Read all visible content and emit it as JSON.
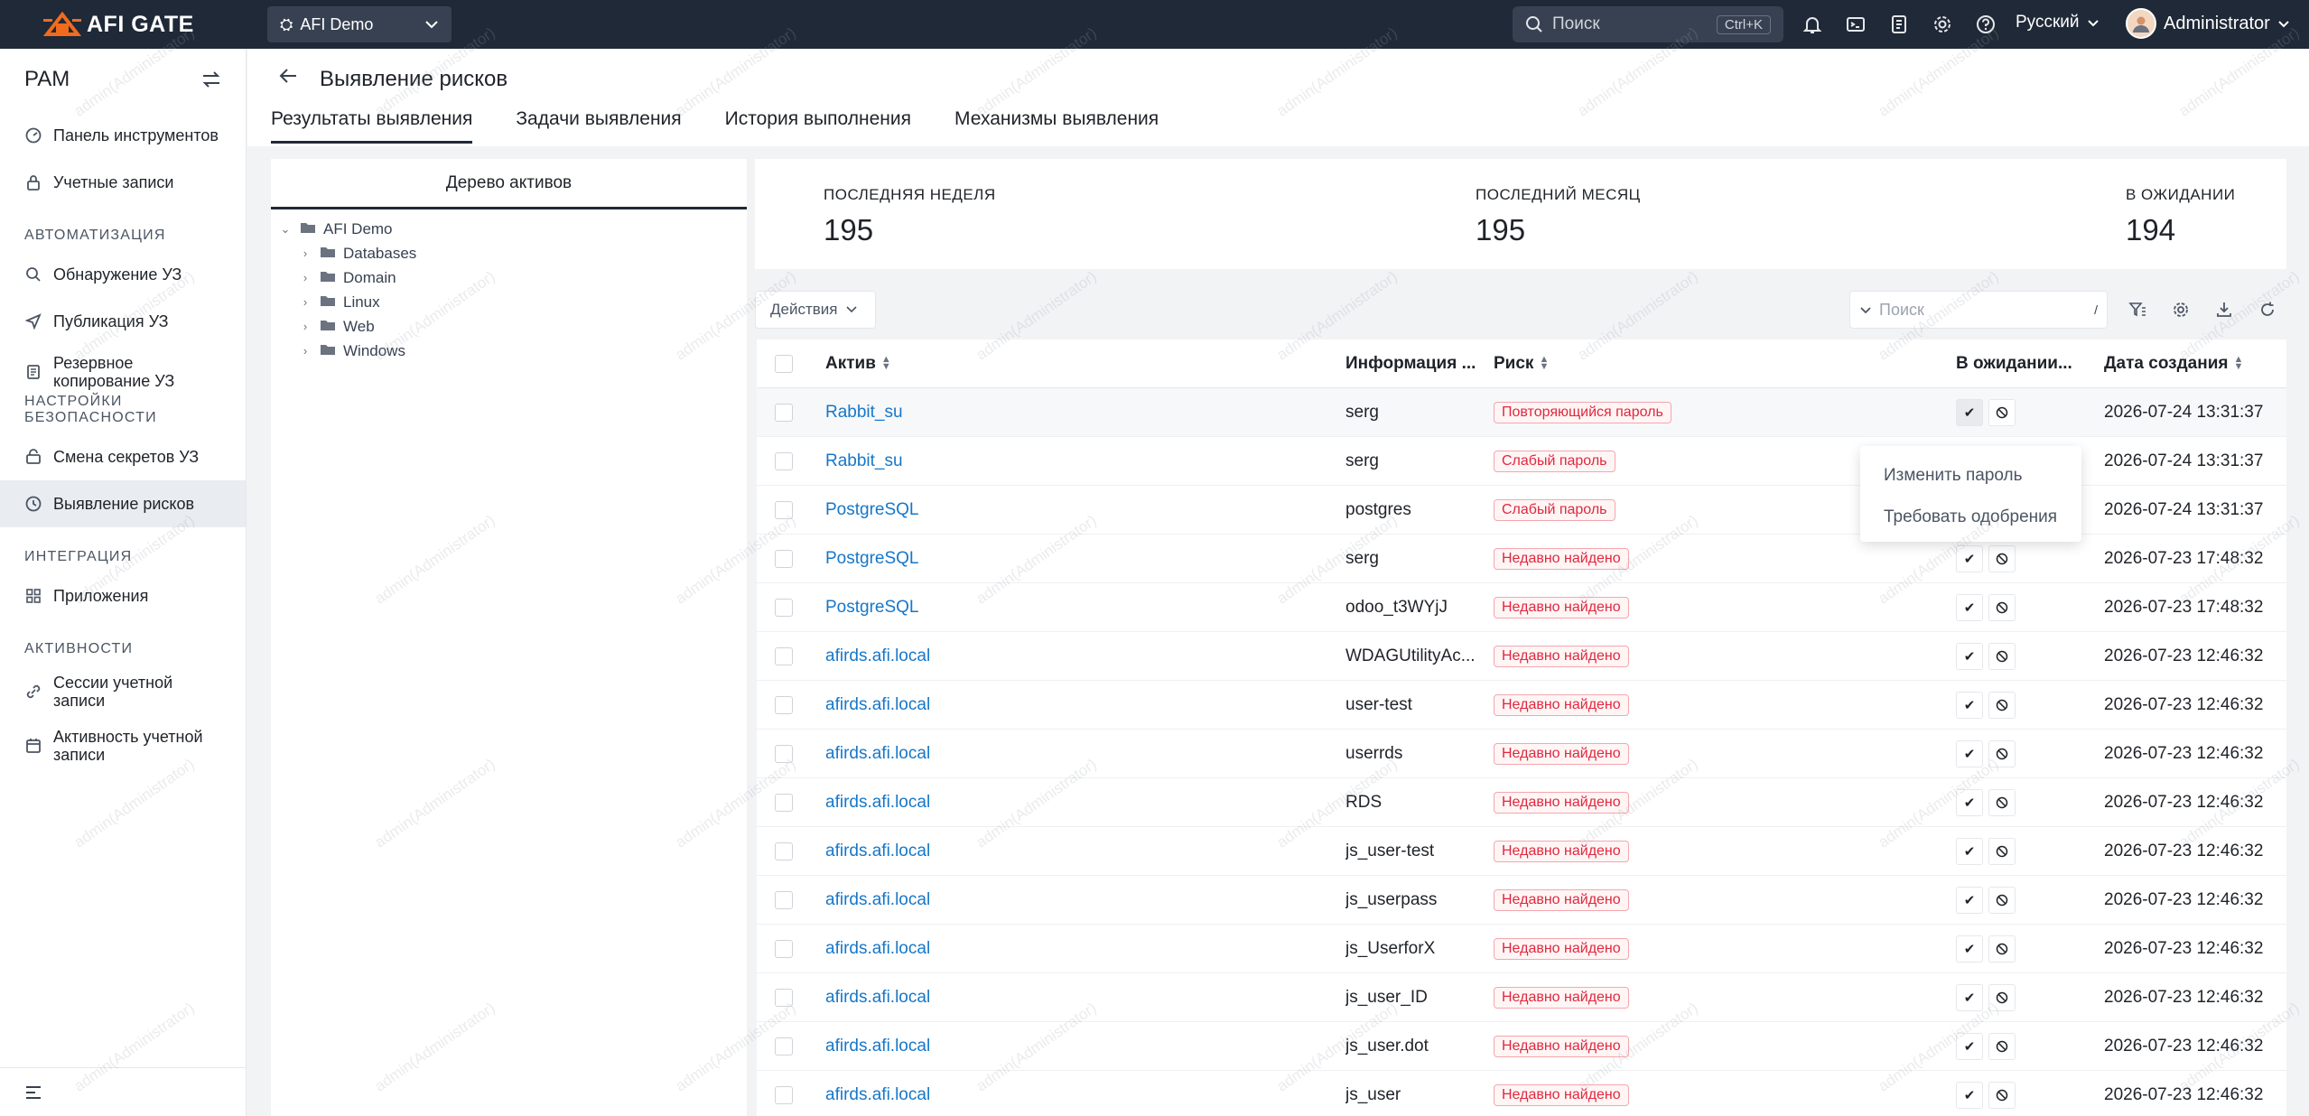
{
  "topbar": {
    "brand": "AFI GATE",
    "org": "AFI Demo",
    "search_placeholder": "Поиск",
    "search_shortcut": "Ctrl+K",
    "language": "Русский",
    "user": "Administrator"
  },
  "sidebar": {
    "title": "PAM",
    "items_top": [
      {
        "label": "Панель инструментов",
        "icon": "dashboard-icon"
      },
      {
        "label": "Учетные записи",
        "icon": "lock-icon"
      }
    ],
    "section_automation": "АВТОМАТИЗАЦИЯ",
    "items_automation": [
      {
        "label": "Обнаружение УЗ",
        "icon": "search-icon"
      },
      {
        "label": "Публикация УЗ",
        "icon": "send-icon"
      },
      {
        "label": "Резервное копирование УЗ",
        "icon": "backup-icon"
      }
    ],
    "section_security": "НАСТРОЙКИ БЕЗОПАСНОСТИ",
    "items_security": [
      {
        "label": "Смена секретов УЗ",
        "icon": "key-rotate-icon"
      },
      {
        "label": "Выявление рисков",
        "icon": "risk-icon"
      }
    ],
    "section_integration": "ИНТЕГРАЦИЯ",
    "items_integration": [
      {
        "label": "Приложения",
        "icon": "apps-icon"
      }
    ],
    "section_activity": "АКТИВНОСТИ",
    "items_activity": [
      {
        "label": "Сессии учетной записи",
        "icon": "link-icon"
      },
      {
        "label": "Активность учетной записи",
        "icon": "calendar-icon"
      }
    ]
  },
  "page": {
    "title": "Выявление рисков",
    "tabs": [
      "Результаты выявления",
      "Задачи выявления",
      "История выполнения",
      "Механизмы выявления"
    ]
  },
  "tree": {
    "title": "Дерево активов",
    "root": "AFI Demo",
    "children": [
      "Databases",
      "Domain",
      "Linux",
      "Web",
      "Windows"
    ]
  },
  "stats": [
    {
      "label": "ПОСЛЕДНЯЯ НЕДЕЛЯ",
      "value": "195"
    },
    {
      "label": "ПОСЛЕДНИЙ МЕСЯЦ",
      "value": "195"
    },
    {
      "label": "В ОЖИДАНИИ",
      "value": "194"
    }
  ],
  "toolbar": {
    "actions_label": "Действия",
    "search_placeholder": "Поиск",
    "search_shortcut": "/"
  },
  "table": {
    "columns": [
      "Актив",
      "Информация ...",
      "Риск",
      "В ожидании...",
      "Дата создания"
    ],
    "rows": [
      {
        "asset": "Rabbit_su",
        "info": "serg",
        "risk": "Повторяющийся пароль",
        "date": "2026-07-24 13:31:37"
      },
      {
        "asset": "Rabbit_su",
        "info": "serg",
        "risk": "Слабый пароль",
        "date": "2026-07-24 13:31:37"
      },
      {
        "asset": "PostgreSQL",
        "info": "postgres",
        "risk": "Слабый пароль",
        "date": "2026-07-24 13:31:37"
      },
      {
        "asset": "PostgreSQL",
        "info": "serg",
        "risk": "Недавно найдено",
        "date": "2026-07-23 17:48:32"
      },
      {
        "asset": "PostgreSQL",
        "info": "odoo_t3WYjJ",
        "risk": "Недавно найдено",
        "date": "2026-07-23 17:48:32"
      },
      {
        "asset": "afirds.afi.local",
        "info": "WDAGUtilityAc...",
        "risk": "Недавно найдено",
        "date": "2026-07-23 12:46:32"
      },
      {
        "asset": "afirds.afi.local",
        "info": "user-test",
        "risk": "Недавно найдено",
        "date": "2026-07-23 12:46:32"
      },
      {
        "asset": "afirds.afi.local",
        "info": "userrds",
        "risk": "Недавно найдено",
        "date": "2026-07-23 12:46:32"
      },
      {
        "asset": "afirds.afi.local",
        "info": "RDS",
        "risk": "Недавно найдено",
        "date": "2026-07-23 12:46:32"
      },
      {
        "asset": "afirds.afi.local",
        "info": "js_user-test",
        "risk": "Недавно найдено",
        "date": "2026-07-23 12:46:32"
      },
      {
        "asset": "afirds.afi.local",
        "info": "js_userpass",
        "risk": "Недавно найдено",
        "date": "2026-07-23 12:46:32"
      },
      {
        "asset": "afirds.afi.local",
        "info": "js_UserforX",
        "risk": "Недавно найдено",
        "date": "2026-07-23 12:46:32"
      },
      {
        "asset": "afirds.afi.local",
        "info": "js_user_ID",
        "risk": "Недавно найдено",
        "date": "2026-07-23 12:46:32"
      },
      {
        "asset": "afirds.afi.local",
        "info": "js_user.dot",
        "risk": "Недавно найдено",
        "date": "2026-07-23 12:46:32"
      },
      {
        "asset": "afirds.afi.local",
        "info": "js_user",
        "risk": "Недавно найдено",
        "date": "2026-07-23 12:46:32"
      }
    ]
  },
  "dropdown": {
    "items": [
      "Изменить пароль",
      "Требовать одобрения"
    ]
  },
  "watermark": "admin(Administrator)",
  "colors": {
    "topbar": "#1f2937",
    "accent": "#f26b1d",
    "link": "#1677c9",
    "risk": "#e0283e"
  }
}
